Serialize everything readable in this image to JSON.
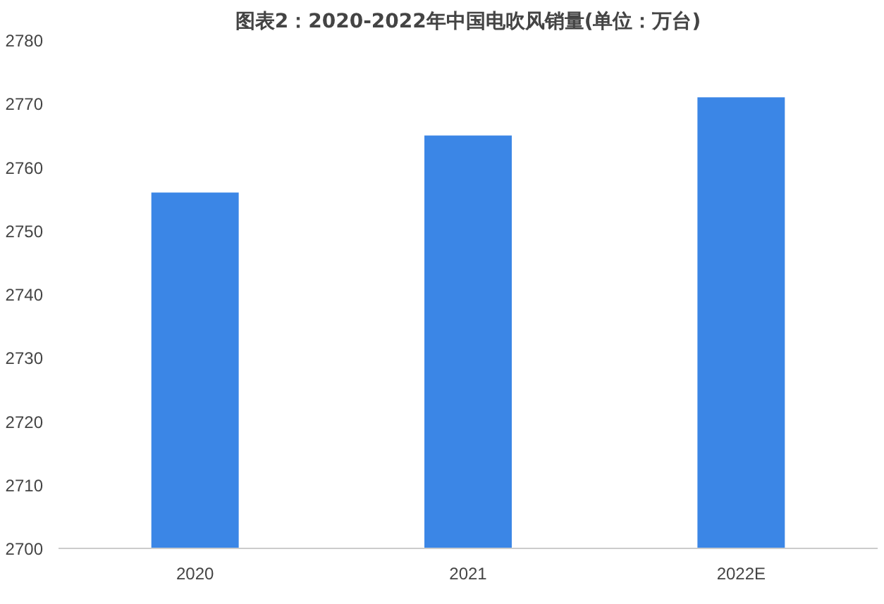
{
  "chart_data": {
    "type": "bar",
    "title": "图表2：2020-2022年中国电吹风销量(单位：万台)",
    "categories": [
      "2020",
      "2021",
      "2022E"
    ],
    "values": [
      2756,
      2765,
      2771
    ],
    "color": "#3b86e6",
    "ylim": [
      2700,
      2780
    ],
    "yticks": [
      2700,
      2710,
      2720,
      2730,
      2740,
      2750,
      2760,
      2770,
      2780
    ],
    "grid": false
  }
}
